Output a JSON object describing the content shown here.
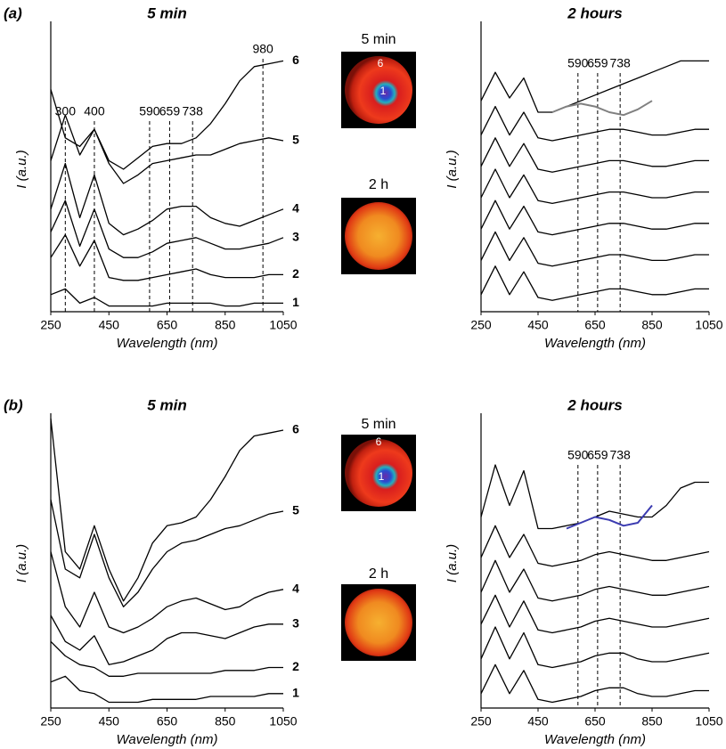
{
  "chart_data": [
    {
      "type": "line",
      "panel": "(a)",
      "title": "5 min",
      "xlabel": "Wavelength (nm)",
      "ylabel": "I (a.u.)",
      "x": [
        250,
        300,
        350,
        400,
        450,
        500,
        550,
        600,
        650,
        700,
        750,
        800,
        850,
        900,
        950,
        1000,
        1050
      ],
      "xlim": [
        250,
        1050
      ],
      "xticks": [
        250,
        450,
        650,
        850,
        1050
      ],
      "ylim": [
        0,
        100
      ],
      "vlines": [
        300,
        400,
        590,
        659,
        738,
        980
      ],
      "series": [
        {
          "name": "1",
          "color": "#000000",
          "values": [
            6,
            8,
            3,
            5,
            2,
            2,
            2,
            2,
            3,
            3,
            3,
            3,
            2,
            2,
            3,
            3,
            3
          ]
        },
        {
          "name": "2",
          "color": "#000000",
          "values": [
            19,
            27,
            16,
            25,
            12,
            11,
            11,
            12,
            13,
            14,
            15,
            13,
            12,
            12,
            12,
            13,
            13
          ]
        },
        {
          "name": "3",
          "color": "#000000",
          "values": [
            28,
            39,
            23,
            36,
            22,
            19,
            19,
            21,
            24,
            25,
            26,
            24,
            22,
            22,
            23,
            24,
            26
          ]
        },
        {
          "name": "4",
          "color": "#000000",
          "values": [
            36,
            52,
            33,
            48,
            31,
            27,
            29,
            32,
            36,
            37,
            37,
            33,
            31,
            30,
            32,
            34,
            36
          ]
        },
        {
          "name": "5",
          "color": "#000000",
          "values": [
            53,
            69,
            55,
            64,
            52,
            45,
            48,
            52,
            53,
            54,
            55,
            55,
            57,
            59,
            60,
            61,
            60
          ]
        },
        {
          "name": "6",
          "color": "#000000",
          "values": [
            78,
            61,
            58,
            64,
            53,
            50,
            54,
            58,
            59,
            59,
            61,
            66,
            73,
            81,
            86,
            87,
            88
          ]
        }
      ]
    },
    {
      "type": "line",
      "title": "2 hours",
      "xlabel": "Wavelength (nm)",
      "ylabel": "I (a.u.)",
      "x": [
        250,
        300,
        350,
        400,
        450,
        500,
        550,
        600,
        650,
        700,
        750,
        800,
        850,
        900,
        950,
        1000,
        1050
      ],
      "xlim": [
        250,
        1050
      ],
      "xticks": [
        250,
        450,
        650,
        850,
        1050
      ],
      "ylim": [
        0,
        100
      ],
      "vlines": [
        590,
        659,
        738
      ],
      "series": [
        {
          "color": "#000000",
          "values": [
            6,
            16,
            6,
            14,
            5,
            4,
            5,
            6,
            7,
            8,
            8,
            7,
            6,
            6,
            7,
            8,
            8
          ]
        },
        {
          "color": "#000000",
          "values": [
            18,
            28,
            18,
            26,
            17,
            16,
            17,
            18,
            19,
            20,
            20,
            19,
            18,
            18,
            19,
            20,
            20
          ]
        },
        {
          "color": "#000000",
          "values": [
            29,
            39,
            29,
            37,
            28,
            27,
            28,
            29,
            30,
            31,
            31,
            30,
            29,
            29,
            30,
            31,
            31
          ]
        },
        {
          "color": "#000000",
          "values": [
            40,
            50,
            40,
            48,
            39,
            38,
            39,
            40,
            41,
            42,
            42,
            41,
            40,
            40,
            41,
            42,
            42
          ]
        },
        {
          "color": "#000000",
          "values": [
            51,
            61,
            51,
            59,
            50,
            49,
            50,
            51,
            52,
            53,
            53,
            52,
            51,
            51,
            52,
            53,
            53
          ]
        },
        {
          "color": "#000000",
          "values": [
            62,
            72,
            62,
            70,
            61,
            60,
            61,
            62,
            63,
            64,
            64,
            63,
            62,
            62,
            63,
            64,
            64
          ]
        },
        {
          "color": "#000000",
          "values": [
            74,
            84,
            75,
            82,
            70,
            70,
            72,
            74,
            76,
            78,
            80,
            82,
            84,
            86,
            88,
            88,
            88
          ]
        },
        {
          "color": "#808080",
          "values": [
            null,
            null,
            null,
            null,
            null,
            70,
            72,
            73,
            72,
            70,
            69,
            71,
            74,
            null,
            null,
            null,
            null
          ]
        }
      ]
    },
    {
      "type": "line",
      "panel": "(b)",
      "title": "5 min",
      "xlabel": "Wavelength (nm)",
      "ylabel": "I (a.u.)",
      "x": [
        250,
        300,
        350,
        400,
        450,
        500,
        550,
        600,
        650,
        700,
        750,
        800,
        850,
        900,
        950,
        1000,
        1050
      ],
      "xlim": [
        250,
        1050
      ],
      "xticks": [
        250,
        450,
        650,
        850,
        1050
      ],
      "ylim": [
        0,
        100
      ],
      "vlines": [],
      "series": [
        {
          "name": "1",
          "color": "#000000",
          "values": [
            9,
            11,
            6,
            5,
            2,
            2,
            2,
            3,
            3,
            3,
            3,
            4,
            4,
            4,
            4,
            5,
            5
          ]
        },
        {
          "name": "2",
          "color": "#000000",
          "values": [
            23,
            18,
            15,
            14,
            11,
            11,
            12,
            12,
            12,
            12,
            12,
            12,
            13,
            13,
            13,
            14,
            14
          ]
        },
        {
          "name": "3",
          "color": "#000000",
          "values": [
            32,
            23,
            20,
            25,
            15,
            16,
            18,
            20,
            24,
            26,
            26,
            25,
            24,
            26,
            28,
            29,
            29
          ]
        },
        {
          "name": "4",
          "color": "#000000",
          "values": [
            54,
            35,
            28,
            40,
            28,
            26,
            28,
            31,
            35,
            37,
            38,
            36,
            34,
            35,
            38,
            40,
            41
          ]
        },
        {
          "name": "5",
          "color": "#000000",
          "values": [
            72,
            48,
            45,
            60,
            45,
            35,
            40,
            48,
            54,
            57,
            58,
            60,
            62,
            63,
            65,
            67,
            68
          ]
        },
        {
          "name": "6",
          "color": "#000000",
          "values": [
            100,
            54,
            48,
            63,
            48,
            37,
            45,
            57,
            63,
            64,
            66,
            72,
            80,
            89,
            94,
            95,
            96
          ]
        }
      ]
    },
    {
      "type": "line",
      "title": "2 hours",
      "xlabel": "Wavelength (nm)",
      "ylabel": "I (a.u.)",
      "x": [
        250,
        300,
        350,
        400,
        450,
        500,
        550,
        600,
        650,
        700,
        750,
        800,
        850,
        900,
        950,
        1000,
        1050
      ],
      "xlim": [
        250,
        1050
      ],
      "xticks": [
        250,
        450,
        650,
        850,
        1050
      ],
      "ylim": [
        0,
        100
      ],
      "vlines": [
        590,
        659,
        738
      ],
      "series": [
        {
          "color": "#000000",
          "values": [
            5,
            15,
            5,
            13,
            3,
            2,
            3,
            4,
            6,
            7,
            7,
            5,
            4,
            4,
            5,
            6,
            6
          ]
        },
        {
          "color": "#000000",
          "values": [
            17,
            28,
            17,
            26,
            15,
            14,
            15,
            16,
            18,
            19,
            19,
            17,
            16,
            16,
            17,
            18,
            19
          ]
        },
        {
          "color": "#000000",
          "values": [
            29,
            39,
            28,
            37,
            27,
            26,
            27,
            28,
            30,
            31,
            30,
            29,
            28,
            28,
            29,
            30,
            31
          ]
        },
        {
          "color": "#000000",
          "values": [
            40,
            51,
            40,
            48,
            38,
            37,
            38,
            39,
            41,
            42,
            41,
            40,
            39,
            39,
            40,
            41,
            42
          ]
        },
        {
          "color": "#000000",
          "values": [
            52,
            63,
            52,
            60,
            50,
            49,
            50,
            51,
            53,
            54,
            53,
            52,
            51,
            51,
            52,
            53,
            54
          ]
        },
        {
          "color": "#000000",
          "values": [
            66,
            84,
            70,
            82,
            62,
            62,
            63,
            64,
            66,
            68,
            67,
            66,
            66,
            70,
            76,
            78,
            78
          ]
        },
        {
          "color": "#3b3bb0",
          "values": [
            null,
            null,
            null,
            null,
            null,
            null,
            62,
            64,
            66,
            65,
            63,
            64,
            70,
            null,
            null,
            null,
            null
          ]
        }
      ]
    }
  ],
  "images": [
    {
      "title": "5 min",
      "labels": [
        "6",
        "1"
      ]
    },
    {
      "title": "2 h"
    },
    {
      "title": "5 min",
      "labels": [
        "6",
        "1"
      ]
    },
    {
      "title": "2 h"
    }
  ]
}
